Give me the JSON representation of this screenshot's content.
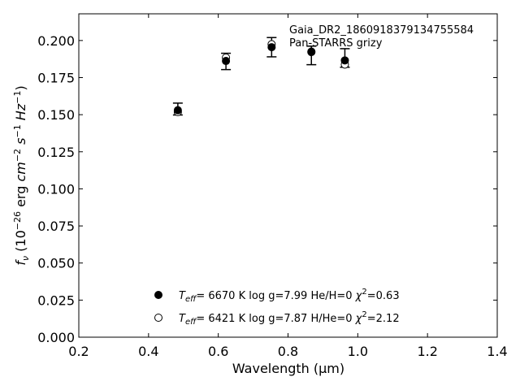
{
  "chart_data": {
    "type": "scatter",
    "xlabel": "Wavelength (μm)",
    "ylabel": "f_ν (10^−26 erg cm^−2 s^−1 Hz^−1)",
    "xlim": [
      0.2,
      1.4
    ],
    "ylim": [
      0.0,
      0.218
    ],
    "xticks": [
      0.2,
      0.4,
      0.6,
      0.8,
      1.0,
      1.2,
      1.4
    ],
    "xtick_labels": [
      "0.2",
      "0.4",
      "0.6",
      "0.8",
      "1.0",
      "1.2",
      "1.4"
    ],
    "yticks": [
      0.0,
      0.025,
      0.05,
      0.075,
      0.1,
      0.125,
      0.15,
      0.175,
      0.2
    ],
    "ytick_labels": [
      "0.000",
      "0.025",
      "0.050",
      "0.075",
      "0.100",
      "0.125",
      "0.150",
      "0.175",
      "0.200"
    ],
    "grid": false,
    "annotations": [
      "Gaia_DR2_1860918379134755584",
      "Pan-STARRS grizy"
    ],
    "observed": {
      "x": [
        0.484,
        0.622,
        0.753,
        0.867,
        0.963
      ],
      "y": [
        0.1538,
        0.1859,
        0.1955,
        0.1922,
        0.1865
      ],
      "yerr_low": [
        0.004,
        0.0055,
        0.0065,
        0.0085,
        0.0045
      ],
      "yerr_high": [
        0.004,
        0.0055,
        0.0065,
        0.004,
        0.008
      ]
    },
    "series": [
      {
        "marker": "filled",
        "legend": {
          "teff_value": "6670 K",
          "logg": "log g=7.99",
          "comp": "He/H=0",
          "chi2": "=0.63"
        },
        "x": [
          0.484,
          0.622,
          0.753,
          0.867,
          0.963
        ],
        "y": [
          0.153,
          0.1862,
          0.1955,
          0.1922,
          0.1866
        ]
      },
      {
        "marker": "open",
        "legend": {
          "teff_value": "6421 K",
          "logg": "log g=7.87",
          "comp": "H/He=0",
          "chi2": "=2.12"
        },
        "x": [
          0.484,
          0.622,
          0.753,
          0.867,
          0.963
        ],
        "y": [
          0.1518,
          0.1885,
          0.1975,
          0.1925,
          0.1838
        ]
      }
    ]
  }
}
